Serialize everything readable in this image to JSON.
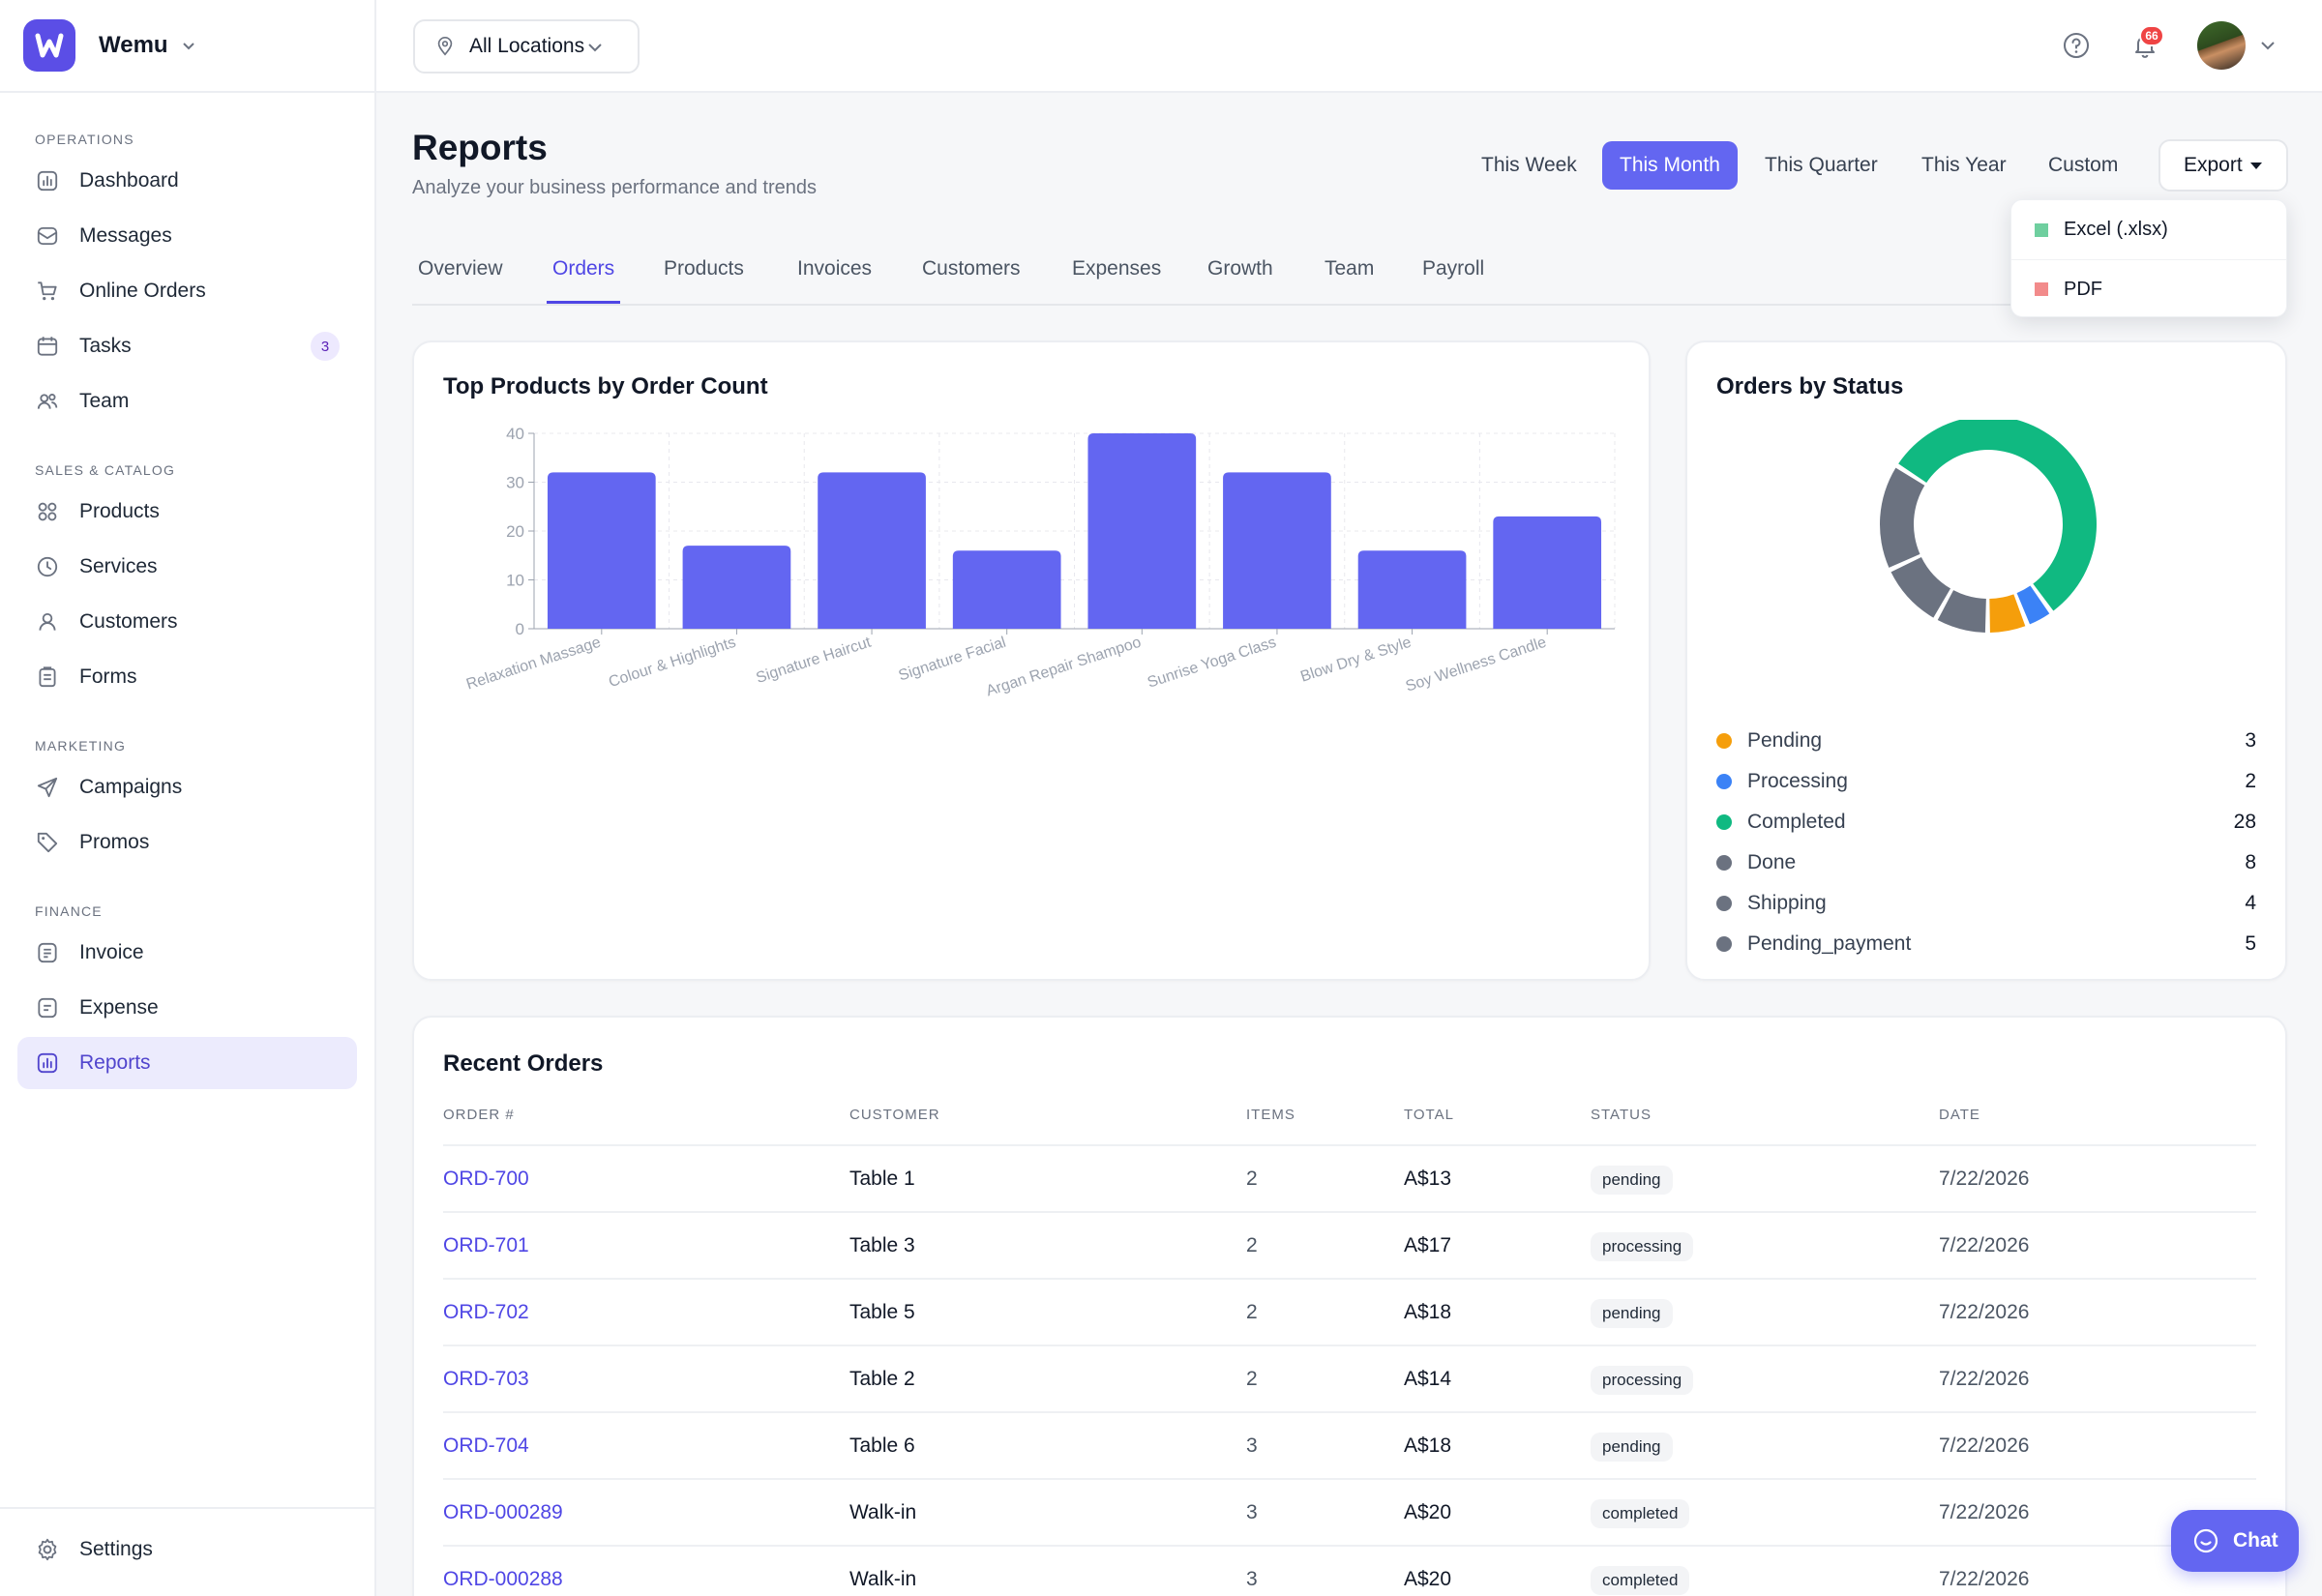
{
  "app": {
    "name": "Wemu"
  },
  "sidebar": {
    "sections": [
      {
        "label": "OPERATIONS",
        "items": [
          {
            "label": "Dashboard",
            "icon": "chart-icon"
          },
          {
            "label": "Messages",
            "icon": "inbox-icon"
          },
          {
            "label": "Online Orders",
            "icon": "cart-icon"
          },
          {
            "label": "Tasks",
            "icon": "calendar-icon",
            "badge": "3"
          },
          {
            "label": "Team",
            "icon": "users-icon"
          }
        ]
      },
      {
        "label": "SALES & CATALOG",
        "items": [
          {
            "label": "Products",
            "icon": "grid-icon"
          },
          {
            "label": "Services",
            "icon": "clock-icon"
          },
          {
            "label": "Customers",
            "icon": "user-icon"
          },
          {
            "label": "Forms",
            "icon": "clipboard-icon"
          }
        ]
      },
      {
        "label": "MARKETING",
        "items": [
          {
            "label": "Campaigns",
            "icon": "send-icon"
          },
          {
            "label": "Promos",
            "icon": "tag-icon"
          }
        ]
      },
      {
        "label": "FINANCE",
        "items": [
          {
            "label": "Invoice",
            "icon": "invoice-icon"
          },
          {
            "label": "Expense",
            "icon": "expense-icon"
          },
          {
            "label": "Reports",
            "icon": "chart-icon",
            "active": true
          }
        ]
      }
    ],
    "settings_label": "Settings"
  },
  "topbar": {
    "location": "All Locations",
    "notification_count": "66"
  },
  "header": {
    "title": "Reports",
    "subtitle": "Analyze your business performance and trends",
    "periods": [
      "This Week",
      "This Month",
      "This Quarter",
      "This Year",
      "Custom"
    ],
    "active_period": "This Month",
    "export_label": "Export",
    "export_options": [
      {
        "label": "Excel (.xlsx)",
        "color": "#6fcf9f"
      },
      {
        "label": "PDF",
        "color": "#f28b8b"
      }
    ]
  },
  "tabs": [
    "Overview",
    "Orders",
    "Products",
    "Invoices",
    "Customers",
    "Expenses",
    "Growth",
    "Team",
    "Payroll"
  ],
  "active_tab": "Orders",
  "bar_card": {
    "title": "Top Products by Order Count"
  },
  "chart_data": [
    {
      "type": "bar",
      "title": "Top Products by Order Count",
      "categories": [
        "Relaxation Massage",
        "Colour & Highlights",
        "Signature Haircut",
        "Signature Facial",
        "Argan Repair Shampoo",
        "Sunrise Yoga Class",
        "Blow Dry & Style",
        "Soy Wellness Candle"
      ],
      "values": [
        32,
        17,
        32,
        16,
        40,
        32,
        16,
        23
      ],
      "ylim": [
        0,
        40
      ],
      "yticks": [
        "0",
        "10",
        "20",
        "30",
        "40"
      ],
      "grid": true,
      "color": "#6366f1"
    },
    {
      "type": "pie",
      "title": "Orders by Status",
      "labels": [
        "Pending",
        "Processing",
        "Completed",
        "Done",
        "Shipping",
        "Pending_payment"
      ],
      "values": [
        3,
        2,
        28,
        8,
        4,
        5
      ],
      "colors": [
        "#f59e0b",
        "#3b82f6",
        "#10b981",
        "#6b7280",
        "#6b7280",
        "#6b7280"
      ],
      "donut": true
    }
  ],
  "status_card": {
    "title": "Orders by Status"
  },
  "orders": {
    "title": "Recent Orders",
    "columns": [
      "ORDER #",
      "CUSTOMER",
      "ITEMS",
      "TOTAL",
      "STATUS",
      "DATE"
    ],
    "rows": [
      {
        "order": "ORD-700",
        "customer": "Table 1",
        "items": "2",
        "total": "A$13",
        "status": "pending",
        "date": "7/22/2026"
      },
      {
        "order": "ORD-701",
        "customer": "Table 3",
        "items": "2",
        "total": "A$17",
        "status": "processing",
        "date": "7/22/2026"
      },
      {
        "order": "ORD-702",
        "customer": "Table 5",
        "items": "2",
        "total": "A$18",
        "status": "pending",
        "date": "7/22/2026"
      },
      {
        "order": "ORD-703",
        "customer": "Table 2",
        "items": "2",
        "total": "A$14",
        "status": "processing",
        "date": "7/22/2026"
      },
      {
        "order": "ORD-704",
        "customer": "Table 6",
        "items": "3",
        "total": "A$18",
        "status": "pending",
        "date": "7/22/2026"
      },
      {
        "order": "ORD-000289",
        "customer": "Walk-in",
        "items": "3",
        "total": "A$20",
        "status": "completed",
        "date": "7/22/2026"
      },
      {
        "order": "ORD-000288",
        "customer": "Walk-in",
        "items": "3",
        "total": "A$20",
        "status": "completed",
        "date": "7/22/2026"
      }
    ]
  },
  "chat": {
    "label": "Chat"
  }
}
